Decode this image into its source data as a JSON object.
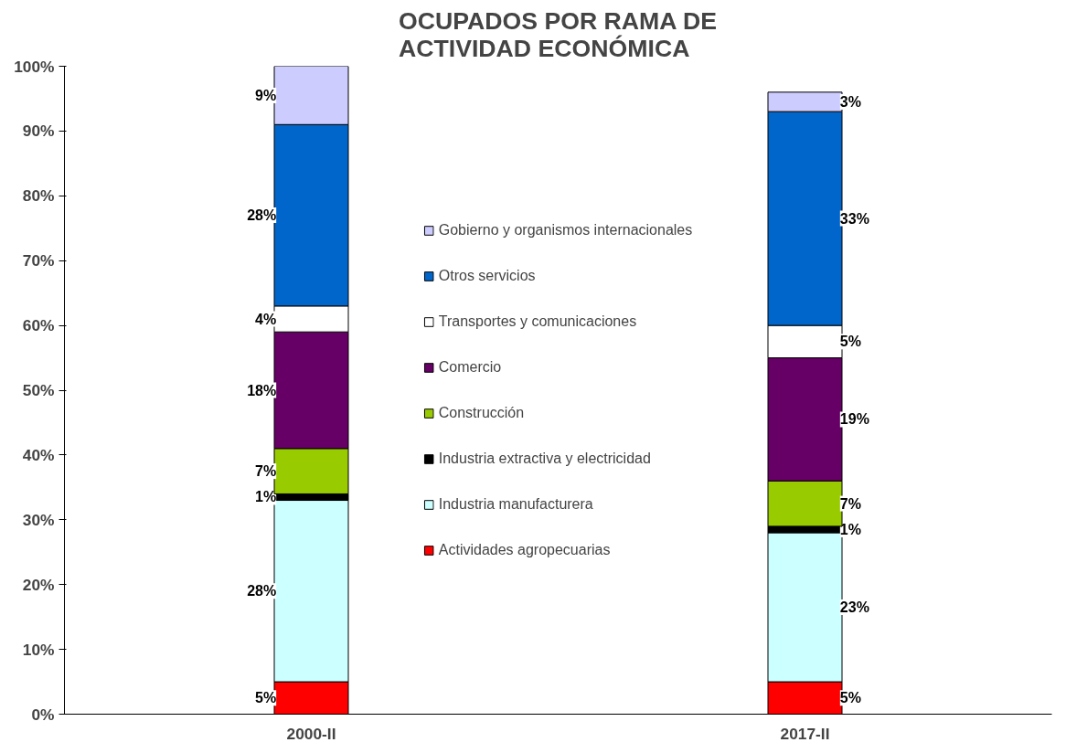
{
  "chart_data": {
    "type": "bar",
    "stacked": true,
    "title": "OCUPADOS POR RAMA DE\nACTIVIDAD ECONÓMICA",
    "categories": [
      "2000-II",
      "2017-II"
    ],
    "ylim": [
      0,
      100
    ],
    "yticks": [
      {
        "value": 0,
        "label": "0%"
      },
      {
        "value": 10,
        "label": "10%"
      },
      {
        "value": 20,
        "label": "20%"
      },
      {
        "value": 30,
        "label": "30%"
      },
      {
        "value": 40,
        "label": "40%"
      },
      {
        "value": 50,
        "label": "50%"
      },
      {
        "value": 60,
        "label": "60%"
      },
      {
        "value": 70,
        "label": "70%"
      },
      {
        "value": 80,
        "label": "80%"
      },
      {
        "value": 90,
        "label": "90%"
      },
      {
        "value": 100,
        "label": "100%"
      }
    ],
    "grid": false,
    "legend": "center",
    "series": [
      {
        "name": "Actividades agropecuarias",
        "color": "#ff0000",
        "values": [
          5,
          5
        ],
        "value_labels": [
          "5%",
          "5%"
        ]
      },
      {
        "name": "Industria manufacturera",
        "color": "#ccffff",
        "values": [
          28,
          23
        ],
        "value_labels": [
          "28%",
          "23%"
        ]
      },
      {
        "name": "Industria extractiva y electricidad",
        "color": "#000000",
        "values": [
          1,
          1
        ],
        "value_labels": [
          "1%",
          "1%"
        ]
      },
      {
        "name": "Construcción",
        "color": "#99cc00",
        "values": [
          7,
          7
        ],
        "value_labels": [
          "7%",
          "7%"
        ]
      },
      {
        "name": "Comercio",
        "color": "#660066",
        "values": [
          18,
          19
        ],
        "value_labels": [
          "18%",
          "19%"
        ]
      },
      {
        "name": "Transportes y comunicaciones",
        "color": "#ffffff",
        "values": [
          4,
          5
        ],
        "value_labels": [
          "4%",
          "5%"
        ]
      },
      {
        "name": "Otros servicios",
        "color": "#0066cc",
        "values": [
          28,
          33
        ],
        "value_labels": [
          "28%",
          "33%"
        ]
      },
      {
        "name": "Gobierno y organismos internacionales",
        "color": "#ccccff",
        "values": [
          9,
          3
        ],
        "value_labels": [
          "9%",
          "3%"
        ]
      }
    ]
  }
}
